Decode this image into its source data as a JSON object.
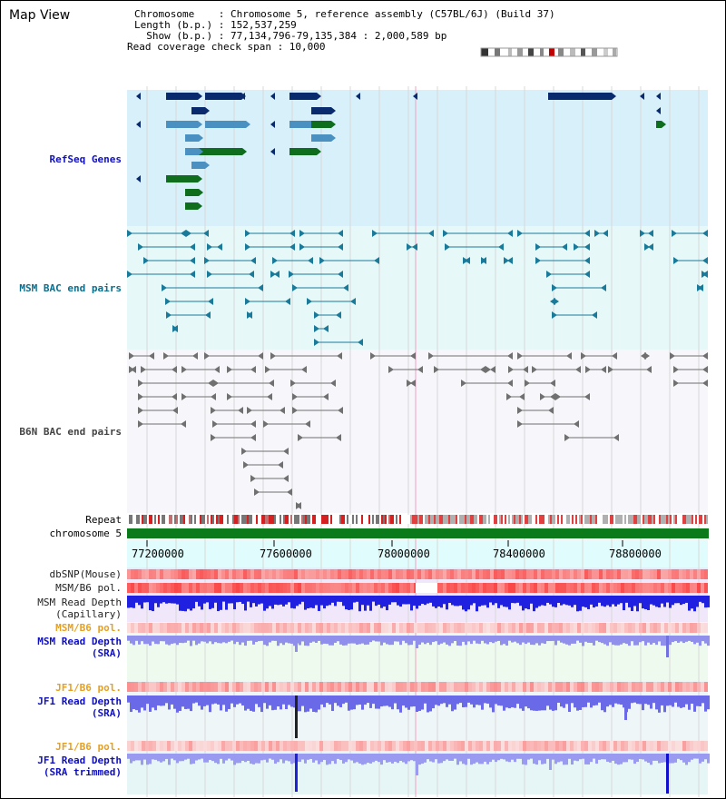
{
  "page": {
    "title": "Map View"
  },
  "info": {
    "line1": "Chromosome    : Chromosome 5, reference assembly (C57BL/6J) (Build 37)",
    "line2": "Length (b.p.) : 152,537,259",
    "line3": "  Show (b.p.) : 77,134,796-79,135,384 : 2,000,589 bp",
    "line4": "Read coverage check span : 10,000"
  },
  "tracks": {
    "refseq": "RefSeq Genes",
    "msm_bac": "MSM BAC end pairs",
    "b6n_bac": "B6N BAC end pairs",
    "repeat": "Repeat",
    "chromosome": "chromosome 5",
    "dbsnp": "dbSNP(Mouse)",
    "msm_b6_pol_1": "MSM/B6 pol.",
    "msm_depth_cap": "MSM Read Depth\n(Capillary)",
    "msm_b6_pol_2": "MSM/B6 pol.",
    "msm_depth_sra": "MSM Read Depth\n(SRA)",
    "jf1_b6_pol_1": "JF1/B6 pol.",
    "jf1_depth_sra": "JF1 Read Depth\n(SRA)",
    "jf1_b6_pol_2": "JF1/B6 pol.",
    "jf1_depth_trim": "JF1 Read Depth\n(SRA trimmed)"
  },
  "axis": {
    "ticks": [
      "77200000",
      "77600000",
      "78000000",
      "78400000",
      "78800000"
    ]
  },
  "colors": {
    "refseq_bg": "#d8f0fa",
    "msm_bg": "#e8f8fa",
    "b6n_bg": "#f4f4fa",
    "chrom_green": "#0a7a1a",
    "gene_dark": "#0a2a6e",
    "gene_mid": "#4a90c0",
    "gene_green": "#0e6e1e",
    "depth_blue": "#1a1adc",
    "depth_light": "#8a8ae8"
  }
}
